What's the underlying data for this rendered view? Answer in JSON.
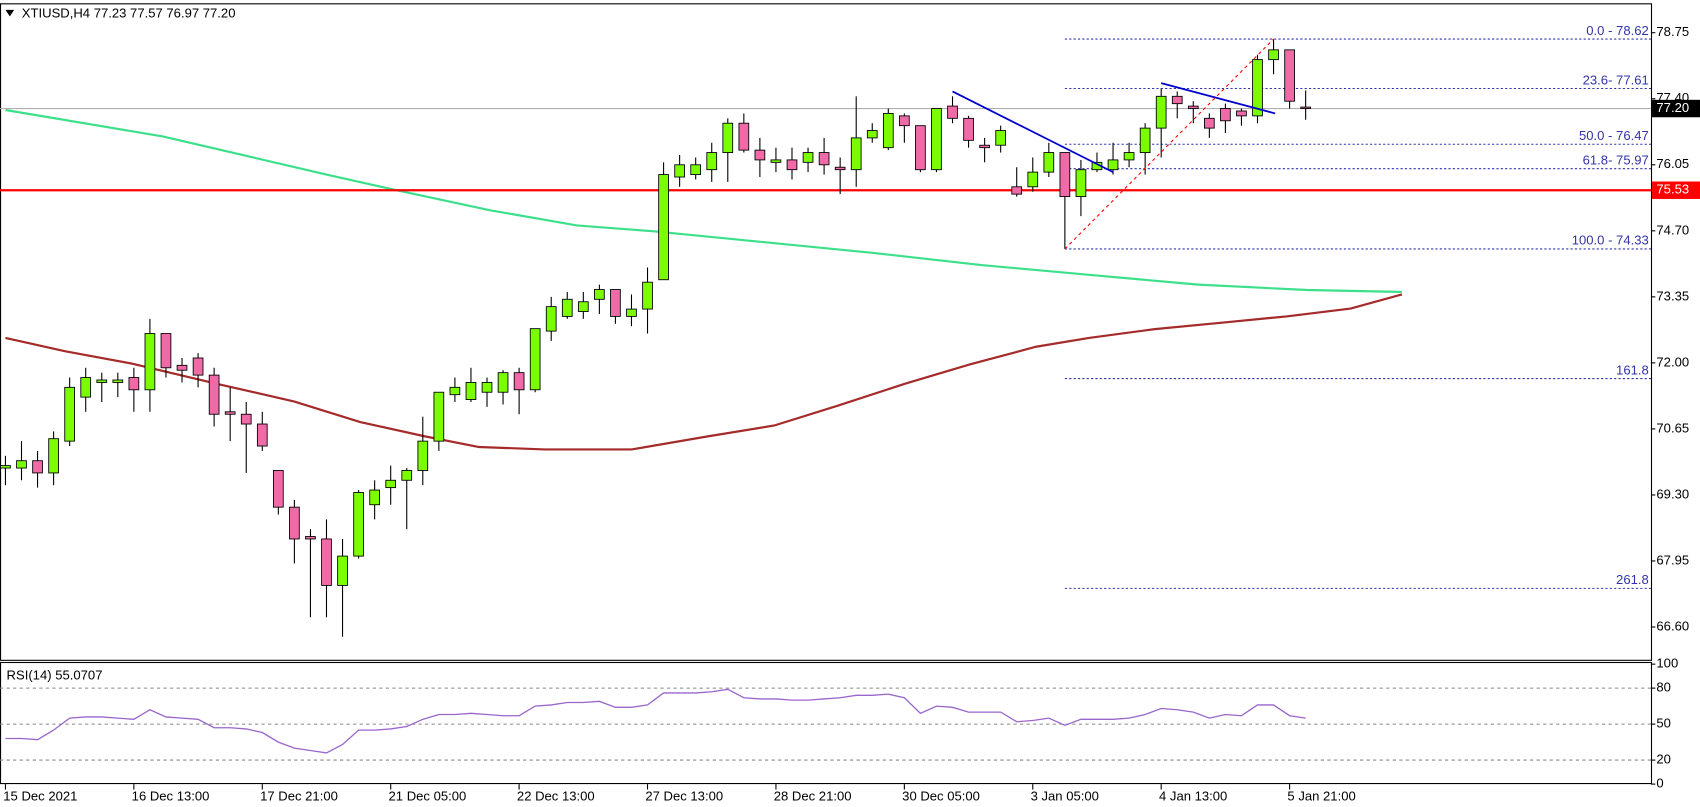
{
  "chart_data": {
    "type": "candlestick",
    "title": "XTIUSD,H4  77.23 77.57 76.97 77.20",
    "categories": [
      "15 Dec 2021",
      null,
      null,
      null,
      null,
      null,
      null,
      null,
      "16 Dec 13:00",
      null,
      null,
      null,
      null,
      null,
      null,
      null,
      "17 Dec 21:00",
      null,
      null,
      null,
      null,
      null,
      null,
      null,
      "21 Dec 05:00",
      null,
      null,
      null,
      null,
      null,
      null,
      null,
      "22 Dec 13:00",
      null,
      null,
      null,
      null,
      null,
      null,
      null,
      "27 Dec 13:00",
      null,
      null,
      null,
      null,
      null,
      null,
      null,
      "28 Dec 21:00",
      null,
      null,
      null,
      null,
      null,
      null,
      null,
      "30 Dec 05:00",
      null,
      null,
      null,
      null,
      null,
      null,
      null,
      "3 Jan 05:00",
      null,
      null,
      null,
      null,
      null,
      null,
      null,
      "4 Jan 13:00",
      null,
      null,
      null,
      null,
      null,
      null,
      null,
      "5 Jan 21:00",
      null
    ],
    "open": [
      69.85,
      69.85,
      70.0,
      69.75,
      70.4,
      71.3,
      71.6,
      71.6,
      71.7,
      71.45,
      72.6,
      71.95,
      72.1,
      71.75,
      71.0,
      70.95,
      70.75,
      69.8,
      69.05,
      68.45,
      68.4,
      67.45,
      68.05,
      69.1,
      69.45,
      69.6,
      69.8,
      70.4,
      71.35,
      71.25,
      71.4,
      71.4,
      71.8,
      71.45,
      72.65,
      72.95,
      73.05,
      73.3,
      73.5,
      72.95,
      73.1,
      73.7,
      75.8,
      75.85,
      75.95,
      76.3,
      76.9,
      76.35,
      76.1,
      76.15,
      76.1,
      76.3,
      76.0,
      75.95,
      76.6,
      76.4,
      77.05,
      76.85,
      75.95,
      77.25,
      77.0,
      76.45,
      76.45,
      75.6,
      75.6,
      75.9,
      76.3,
      75.4,
      75.95,
      75.95,
      76.15,
      76.3,
      76.8,
      77.45,
      77.25,
      77.0,
      77.2,
      77.15,
      77.05,
      78.2,
      78.4,
      77.23
    ],
    "high": [
      70.1,
      70.4,
      70.2,
      70.6,
      71.7,
      71.9,
      71.8,
      71.8,
      71.9,
      72.9,
      72.6,
      72.1,
      72.2,
      71.9,
      71.5,
      71.2,
      71.0,
      69.8,
      69.2,
      68.6,
      68.8,
      68.4,
      69.4,
      69.6,
      69.9,
      69.85,
      70.9,
      71.4,
      71.7,
      71.9,
      71.7,
      71.85,
      71.9,
      72.7,
      73.35,
      73.45,
      73.45,
      73.6,
      73.5,
      73.4,
      73.95,
      76.1,
      76.25,
      76.2,
      76.5,
      77.0,
      77.1,
      76.6,
      76.4,
      76.4,
      76.4,
      76.6,
      76.2,
      77.45,
      76.9,
      77.2,
      77.1,
      76.85,
      77.2,
      77.45,
      77.05,
      76.6,
      76.85,
      76.0,
      76.2,
      76.5,
      76.3,
      76.15,
      76.3,
      76.5,
      76.5,
      76.9,
      77.61,
      77.55,
      77.35,
      77.1,
      77.3,
      77.2,
      78.3,
      78.62,
      78.4,
      77.57
    ],
    "low": [
      69.5,
      69.6,
      69.45,
      69.5,
      70.3,
      71.0,
      71.2,
      71.3,
      71.0,
      71.0,
      71.7,
      71.6,
      71.5,
      70.7,
      70.4,
      69.75,
      70.2,
      68.9,
      67.9,
      66.8,
      66.8,
      66.4,
      68.0,
      68.8,
      69.1,
      68.6,
      69.5,
      70.2,
      71.2,
      71.2,
      71.1,
      71.15,
      70.95,
      71.4,
      72.45,
      72.9,
      72.9,
      73.0,
      72.8,
      72.75,
      72.6,
      73.7,
      75.6,
      75.75,
      75.7,
      75.7,
      76.3,
      75.8,
      75.9,
      75.75,
      75.9,
      75.85,
      75.45,
      75.6,
      76.5,
      76.35,
      76.5,
      75.9,
      75.9,
      76.9,
      76.4,
      76.1,
      76.3,
      75.4,
      75.5,
      75.8,
      74.33,
      75.0,
      75.9,
      75.85,
      76.0,
      75.85,
      76.2,
      77.0,
      76.9,
      76.6,
      76.7,
      76.85,
      76.9,
      77.9,
      77.2,
      76.97
    ],
    "close": [
      69.9,
      70.0,
      69.75,
      70.45,
      71.5,
      71.7,
      71.65,
      71.65,
      71.45,
      72.6,
      71.9,
      71.85,
      71.75,
      70.95,
      70.95,
      70.75,
      70.3,
      69.05,
      68.4,
      68.4,
      67.45,
      68.05,
      69.35,
      69.4,
      69.6,
      69.8,
      70.4,
      71.4,
      71.5,
      71.6,
      71.6,
      71.8,
      71.45,
      72.7,
      73.15,
      73.3,
      73.25,
      73.5,
      72.95,
      73.1,
      73.65,
      75.85,
      76.05,
      76.05,
      76.3,
      76.9,
      76.35,
      76.15,
      76.15,
      75.95,
      76.3,
      76.05,
      75.95,
      76.6,
      76.75,
      77.1,
      76.85,
      75.95,
      77.2,
      77.0,
      76.55,
      76.4,
      76.75,
      75.45,
      75.9,
      76.3,
      75.4,
      75.95,
      76.1,
      76.15,
      76.3,
      76.8,
      77.45,
      77.3,
      77.2,
      76.8,
      76.95,
      77.05,
      78.2,
      78.4,
      77.35,
      77.2
    ],
    "up_color": "#7cfc00",
    "down_color": "#f06aa8",
    "ylim": [
      65.93,
      79.33
    ],
    "yticks": [
      {
        "value": 66.6,
        "label": "66.60"
      },
      {
        "value": 67.95,
        "label": "67.95"
      },
      {
        "value": 69.3,
        "label": "69.30"
      },
      {
        "value": 70.65,
        "label": "70.65"
      },
      {
        "value": 72.0,
        "label": "72.00"
      },
      {
        "value": 73.35,
        "label": "73.35"
      },
      {
        "value": 74.7,
        "label": "74.70"
      },
      {
        "value": 76.05,
        "label": "76.05"
      },
      {
        "value": 77.4,
        "label": "77.40"
      },
      {
        "value": 78.75,
        "label": "78.75"
      }
    ],
    "series": [
      {
        "color": "#3ce08a",
        "x": [
          0,
          9.8,
          20,
          24.5,
          30.2,
          35.6,
          40.4,
          47.2,
          54,
          60.8,
          67.5,
          74.3,
          81.1,
          87
        ],
        "values": [
          77.17,
          76.63,
          75.85,
          75.52,
          75.12,
          74.81,
          74.69,
          74.47,
          74.25,
          74.0,
          73.8,
          73.6,
          73.49,
          73.45
        ]
      },
      {
        "color": "#a52a2a",
        "x": [
          0,
          3.7,
          7.8,
          13.2,
          18,
          22.1,
          26.1,
          29.5,
          33.6,
          39,
          43.8,
          47.9,
          51.9,
          56,
          60.1,
          64.2,
          67.5,
          71.6,
          75.7,
          79.8,
          83.8,
          87
        ],
        "values": [
          72.51,
          72.24,
          71.99,
          71.57,
          71.21,
          70.79,
          70.5,
          70.28,
          70.23,
          70.23,
          70.5,
          70.72,
          71.13,
          71.57,
          71.97,
          72.33,
          72.51,
          72.69,
          72.82,
          72.95,
          73.11,
          73.4
        ]
      }
    ],
    "last_price": {
      "value": 77.2,
      "label": "77.20"
    },
    "hline": {
      "value": 75.53,
      "label": "75.53",
      "color": "#ff0000"
    },
    "fib": {
      "anchor_index": 66,
      "levels": [
        {
          "value": 78.62,
          "label": "0.0 - 78.62"
        },
        {
          "value": 77.61,
          "label": "23.6- 77.61"
        },
        {
          "value": 76.47,
          "label": "50.0 - 76.47"
        },
        {
          "value": 75.97,
          "label": "61.8- 75.97"
        },
        {
          "value": 74.33,
          "label": "100.0 - 74.33"
        },
        {
          "value": 71.68,
          "label": "161.8"
        },
        {
          "value": 67.39,
          "label": "261.8"
        }
      ]
    },
    "trendlines": [
      {
        "color": "#0000cc",
        "x": [
          59,
          69
        ],
        "values": [
          77.55,
          75.9
        ]
      },
      {
        "color": "#0000cc",
        "x": [
          72,
          79.1
        ],
        "values": [
          77.72,
          77.1
        ]
      },
      {
        "color": "#ff0000",
        "x": [
          66,
          79
        ],
        "values": [
          74.33,
          78.62
        ],
        "dashed": true
      }
    ],
    "rsi": {
      "title": "RSI(14) 55.0707",
      "color": "#9966cc",
      "ylim": [
        0,
        100
      ],
      "yticks": [
        100,
        80,
        50,
        20,
        0
      ],
      "levels": [
        80,
        50,
        20
      ],
      "values": [
        38,
        38,
        37,
        45,
        55,
        56,
        56,
        55,
        54,
        62,
        56,
        55,
        54,
        47,
        47,
        46,
        43,
        35,
        30,
        28,
        26,
        33,
        45,
        45,
        46,
        48,
        54,
        58,
        58,
        59,
        58,
        57,
        57,
        65,
        66,
        68,
        68,
        69,
        64,
        64,
        66,
        76,
        76,
        76,
        77,
        79,
        72,
        71,
        71,
        70,
        70,
        71,
        72,
        74,
        74,
        75,
        72,
        59,
        65,
        64,
        60,
        60,
        60,
        52,
        53,
        55,
        49,
        54,
        54,
        54,
        55,
        58,
        63,
        62,
        60,
        55,
        58,
        57,
        66,
        66,
        57,
        55
      ]
    }
  }
}
